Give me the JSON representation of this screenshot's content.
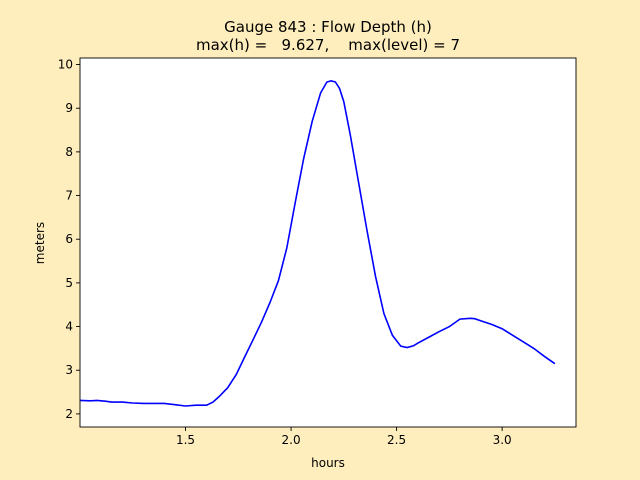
{
  "chart_data": {
    "type": "line",
    "title_line1": "Gauge 843 : Flow Depth (h)",
    "title_line2": "max(h) =   9.627,    max(level) = 7",
    "xlabel": "hours",
    "ylabel": "meters",
    "xlim": [
      1.0,
      3.35
    ],
    "ylim": [
      1.7,
      10.15
    ],
    "xticks": [
      1.5,
      2.0,
      2.5,
      3.0
    ],
    "xtick_labels": [
      "1.5",
      "2.0",
      "2.5",
      "3.0"
    ],
    "yticks": [
      2,
      3,
      4,
      5,
      6,
      7,
      8,
      9,
      10
    ],
    "ytick_labels": [
      "2",
      "3",
      "4",
      "5",
      "6",
      "7",
      "8",
      "9",
      "10"
    ],
    "grid": false,
    "colors": {
      "line": "#0000ff",
      "figure_bg": "#ffeebd",
      "axes_bg": "#ffffff"
    },
    "series": [
      {
        "x": [
          1.0,
          1.05,
          1.08,
          1.12,
          1.15,
          1.2,
          1.25,
          1.3,
          1.35,
          1.4,
          1.45,
          1.5,
          1.55,
          1.6,
          1.63,
          1.66,
          1.7,
          1.74,
          1.78,
          1.82,
          1.86,
          1.9,
          1.94,
          1.98,
          2.02,
          2.06,
          2.1,
          2.14,
          2.17,
          2.19,
          2.21,
          2.23,
          2.25,
          2.28,
          2.32,
          2.36,
          2.4,
          2.44,
          2.48,
          2.52,
          2.55,
          2.58,
          2.6,
          2.65,
          2.7,
          2.75,
          2.8,
          2.85,
          2.87,
          2.9,
          2.95,
          3.0,
          3.05,
          3.1,
          3.15,
          3.2,
          3.25
        ],
        "y": [
          2.31,
          2.3,
          2.31,
          2.29,
          2.27,
          2.27,
          2.25,
          2.24,
          2.24,
          2.24,
          2.21,
          2.18,
          2.2,
          2.2,
          2.27,
          2.4,
          2.6,
          2.9,
          3.3,
          3.7,
          4.1,
          4.55,
          5.05,
          5.8,
          6.85,
          7.85,
          8.7,
          9.35,
          9.6,
          9.627,
          9.6,
          9.45,
          9.15,
          8.4,
          7.3,
          6.2,
          5.15,
          4.3,
          3.8,
          3.55,
          3.52,
          3.56,
          3.62,
          3.75,
          3.88,
          4.0,
          4.17,
          4.19,
          4.18,
          4.13,
          4.05,
          3.95,
          3.8,
          3.65,
          3.5,
          3.32,
          3.15
        ]
      }
    ]
  }
}
